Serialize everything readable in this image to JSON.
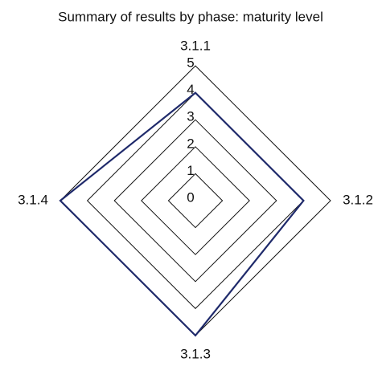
{
  "chart_data": {
    "type": "radar",
    "title": "Summary of results by phase: maturity level",
    "categories": [
      "3.1.1",
      "3.1.2",
      "3.1.3",
      "3.1.4"
    ],
    "values": [
      4,
      4,
      5,
      5
    ],
    "color": "#1f2a6b",
    "ylim": [
      0,
      5
    ],
    "yticks": [
      0,
      1,
      2,
      3,
      4,
      5
    ]
  }
}
